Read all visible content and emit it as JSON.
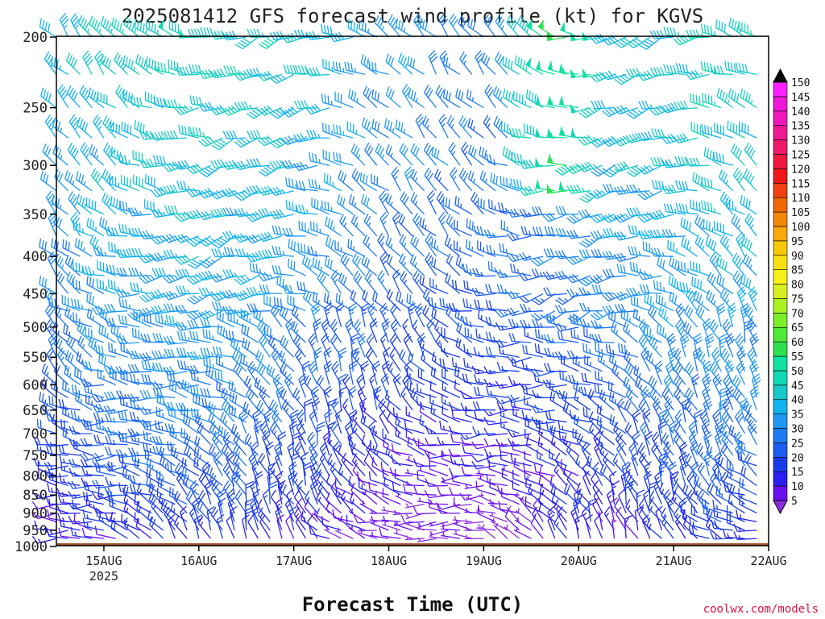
{
  "chart_data": {
    "type": "wind_barb_time_height",
    "title": "2025081412 GFS forecast wind profile (kt) for KGVS",
    "xlabel": "Forecast Time (UTC)",
    "credit": "coolwx.com/models",
    "y_pressure_ticks": [
      200,
      250,
      300,
      350,
      400,
      450,
      500,
      550,
      600,
      650,
      700,
      750,
      800,
      850,
      900,
      950,
      1000
    ],
    "ylim_hpa": [
      200,
      1000
    ],
    "x_range_hours": [
      0,
      180
    ],
    "x_ticks": [
      {
        "label": "15AUG",
        "sub": "2025",
        "hour": 12
      },
      {
        "label": "16AUG",
        "sub": "",
        "hour": 36
      },
      {
        "label": "17AUG",
        "sub": "",
        "hour": 60
      },
      {
        "label": "18AUG",
        "sub": "",
        "hour": 84
      },
      {
        "label": "19AUG",
        "sub": "",
        "hour": 108
      },
      {
        "label": "20AUG",
        "sub": "",
        "hour": 132
      },
      {
        "label": "21AUG",
        "sub": "",
        "hour": 156
      },
      {
        "label": "22AUG",
        "sub": "",
        "hour": 180
      }
    ],
    "colorbar": {
      "values": [
        5,
        10,
        15,
        20,
        25,
        30,
        35,
        40,
        45,
        50,
        55,
        60,
        65,
        70,
        75,
        80,
        85,
        90,
        95,
        100,
        105,
        110,
        115,
        120,
        125,
        130,
        135,
        140,
        145,
        150
      ],
      "colors": [
        "#8a2be2",
        "#6a0ff2",
        "#2a1ff0",
        "#1a3ce8",
        "#1e5cf0",
        "#1e7cf0",
        "#1f98f2",
        "#11b4ee",
        "#17c8c8",
        "#10d8b4",
        "#10e0a0",
        "#2ce050",
        "#50e838",
        "#7aee28",
        "#a8f020",
        "#d8f020",
        "#f6f018",
        "#f8e010",
        "#f8c808",
        "#f8a808",
        "#f48808",
        "#f06808",
        "#f04010",
        "#f01818",
        "#f01840",
        "#f01868",
        "#f01890",
        "#f018b8",
        "#f018d8",
        "#ff20ff"
      ]
    },
    "surface_pressure_hpa": 990,
    "ground_color": "#a0522d",
    "levels_hpa": [
      200,
      225,
      250,
      275,
      300,
      325,
      350,
      375,
      400,
      425,
      450,
      475,
      500,
      525,
      550,
      575,
      600,
      625,
      650,
      675,
      700,
      725,
      750,
      775,
      800,
      825,
      850,
      875,
      900,
      925,
      950,
      975
    ],
    "time_step_hours": 3
  }
}
